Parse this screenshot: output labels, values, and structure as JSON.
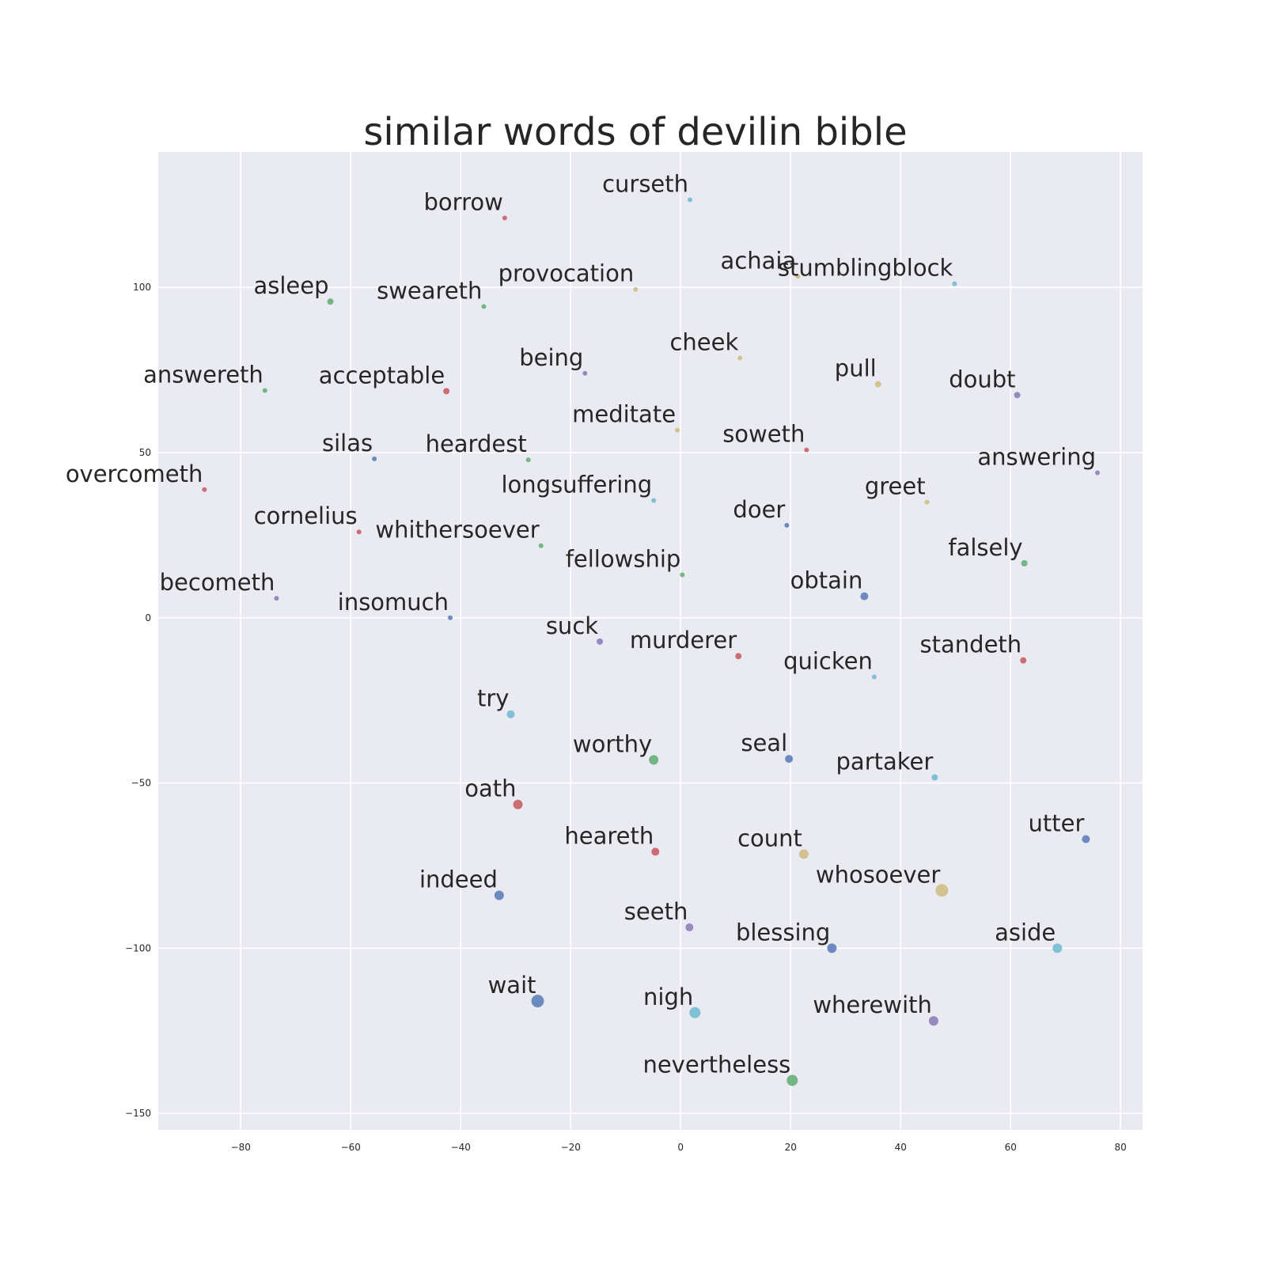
{
  "chart_data": {
    "type": "scatter",
    "title": "similar words of devilin bible",
    "xlabel": "",
    "ylabel": "",
    "xlim": [
      -95,
      84
    ],
    "ylim": [
      -155,
      141
    ],
    "grid": true,
    "x_ticks": [
      -80,
      -60,
      -40,
      -20,
      0,
      20,
      40,
      60,
      80
    ],
    "y_ticks": [
      -150,
      -100,
      -50,
      0,
      50,
      100
    ],
    "palette": {
      "blue": "#4c72b0",
      "green": "#55a868",
      "red": "#c44e52",
      "purple": "#8172b2",
      "yellow": "#ccb974",
      "cyan": "#64b5cd"
    },
    "points": [
      {
        "label": "curseth",
        "x": 1.7,
        "y": 126.5,
        "color": "cyan",
        "size": 3
      },
      {
        "label": "borrow",
        "x": -32.0,
        "y": 121.0,
        "color": "red",
        "size": 3
      },
      {
        "label": "achaia",
        "x": 21.3,
        "y": 103.3,
        "color": "yellow",
        "size": 3
      },
      {
        "label": "stumblingblock",
        "x": 49.8,
        "y": 101.1,
        "color": "cyan",
        "size": 3
      },
      {
        "label": "provocation",
        "x": -8.2,
        "y": 99.4,
        "color": "yellow",
        "size": 3
      },
      {
        "label": "asleep",
        "x": -63.7,
        "y": 95.7,
        "color": "green",
        "size": 4
      },
      {
        "label": "sweareth",
        "x": -35.8,
        "y": 94.2,
        "color": "green",
        "size": 3
      },
      {
        "label": "cheek",
        "x": 10.8,
        "y": 78.6,
        "color": "yellow",
        "size": 3
      },
      {
        "label": "being",
        "x": -17.4,
        "y": 74.0,
        "color": "purple",
        "size": 3
      },
      {
        "label": "pull",
        "x": 35.9,
        "y": 70.7,
        "color": "yellow",
        "size": 4
      },
      {
        "label": "answereth",
        "x": -75.6,
        "y": 68.8,
        "color": "green",
        "size": 3
      },
      {
        "label": "acceptable",
        "x": -42.6,
        "y": 68.6,
        "color": "red",
        "size": 4
      },
      {
        "label": "doubt",
        "x": 61.2,
        "y": 67.4,
        "color": "purple",
        "size": 4
      },
      {
        "label": "meditate",
        "x": -0.6,
        "y": 56.8,
        "color": "yellow",
        "size": 3
      },
      {
        "label": "soweth",
        "x": 22.9,
        "y": 50.8,
        "color": "red",
        "size": 3
      },
      {
        "label": "heardest",
        "x": -27.7,
        "y": 47.8,
        "color": "green",
        "size": 3
      },
      {
        "label": "silas",
        "x": -55.7,
        "y": 48.1,
        "color": "blue",
        "size": 3
      },
      {
        "label": "answering",
        "x": 75.8,
        "y": 43.9,
        "color": "purple",
        "size": 3
      },
      {
        "label": "overcometh",
        "x": -86.6,
        "y": 38.8,
        "color": "red",
        "size": 3
      },
      {
        "label": "longsuffering",
        "x": -4.9,
        "y": 35.5,
        "color": "cyan",
        "size": 3
      },
      {
        "label": "greet",
        "x": 44.8,
        "y": 35.0,
        "color": "yellow",
        "size": 3
      },
      {
        "label": "doer",
        "x": 19.3,
        "y": 28.0,
        "color": "blue",
        "size": 3
      },
      {
        "label": "cornelius",
        "x": -58.5,
        "y": 26.0,
        "color": "red",
        "size": 3
      },
      {
        "label": "whithersoever",
        "x": -25.4,
        "y": 21.8,
        "color": "green",
        "size": 3
      },
      {
        "label": "falsely",
        "x": 62.5,
        "y": 16.5,
        "color": "green",
        "size": 4
      },
      {
        "label": "fellowship",
        "x": 0.3,
        "y": 13.0,
        "color": "green",
        "size": 3
      },
      {
        "label": "obtain",
        "x": 33.4,
        "y": 6.5,
        "color": "blue",
        "size": 5
      },
      {
        "label": "becometh",
        "x": -73.5,
        "y": 5.9,
        "color": "purple",
        "size": 3
      },
      {
        "label": "insomuch",
        "x": -41.9,
        "y": 0.0,
        "color": "blue",
        "size": 3
      },
      {
        "label": "suck",
        "x": -14.7,
        "y": -7.2,
        "color": "purple",
        "size": 4
      },
      {
        "label": "murderer",
        "x": 10.5,
        "y": -11.6,
        "color": "red",
        "size": 4
      },
      {
        "label": "standeth",
        "x": 62.3,
        "y": -12.9,
        "color": "red",
        "size": 4
      },
      {
        "label": "quicken",
        "x": 35.2,
        "y": -17.9,
        "color": "cyan",
        "size": 3
      },
      {
        "label": "try",
        "x": -30.9,
        "y": -29.2,
        "color": "cyan",
        "size": 5
      },
      {
        "label": "worthy",
        "x": -4.9,
        "y": -43.0,
        "color": "green",
        "size": 6
      },
      {
        "label": "seal",
        "x": 19.7,
        "y": -42.7,
        "color": "blue",
        "size": 5
      },
      {
        "label": "partaker",
        "x": 46.2,
        "y": -48.3,
        "color": "cyan",
        "size": 4
      },
      {
        "label": "oath",
        "x": -29.6,
        "y": -56.5,
        "color": "red",
        "size": 6
      },
      {
        "label": "utter",
        "x": 73.7,
        "y": -67.0,
        "color": "blue",
        "size": 5
      },
      {
        "label": "heareth",
        "x": -4.6,
        "y": -70.8,
        "color": "red",
        "size": 5
      },
      {
        "label": "count",
        "x": 22.4,
        "y": -71.5,
        "color": "yellow",
        "size": 6
      },
      {
        "label": "whosoever",
        "x": 47.5,
        "y": -82.5,
        "color": "yellow",
        "size": 8
      },
      {
        "label": "indeed",
        "x": -33.0,
        "y": -84.0,
        "color": "blue",
        "size": 6
      },
      {
        "label": "seeth",
        "x": 1.6,
        "y": -93.7,
        "color": "purple",
        "size": 5
      },
      {
        "label": "blessing",
        "x": 27.5,
        "y": -100.0,
        "color": "blue",
        "size": 6
      },
      {
        "label": "aside",
        "x": 68.5,
        "y": -100.0,
        "color": "cyan",
        "size": 6
      },
      {
        "label": "wait",
        "x": -26.0,
        "y": -116.0,
        "color": "blue",
        "size": 8
      },
      {
        "label": "nigh",
        "x": 2.6,
        "y": -119.5,
        "color": "cyan",
        "size": 7
      },
      {
        "label": "wherewith",
        "x": 46.0,
        "y": -122.0,
        "color": "purple",
        "size": 6
      },
      {
        "label": "nevertheless",
        "x": 20.3,
        "y": -140.0,
        "color": "green",
        "size": 7
      }
    ]
  }
}
